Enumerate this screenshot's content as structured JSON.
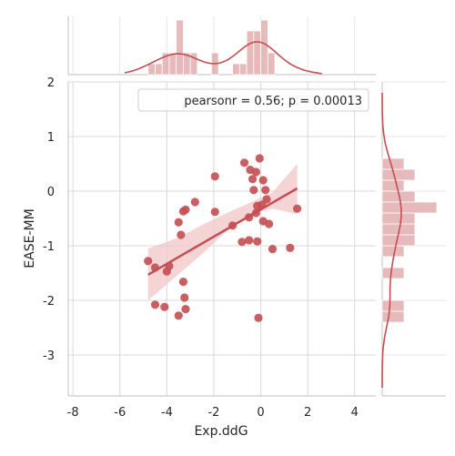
{
  "chart_data": {
    "type": "scatter",
    "title": "",
    "xlabel": "Exp.ddG",
    "ylabel": "EASE-MM",
    "xlim": [
      -8.2,
      4.9
    ],
    "ylim": [
      -3.75,
      2.0
    ],
    "xticks": [
      -8,
      -6,
      -4,
      -2,
      0,
      2,
      4
    ],
    "yticks": [
      -3,
      -2,
      -1,
      0,
      1,
      2
    ],
    "grid": true,
    "legend": {
      "text": "pearsonr = 0.56; p = 0.00013",
      "placement": "top-right"
    },
    "colors": {
      "points": "#c44e52",
      "regression": "#c44e52",
      "band": "#f2c6c8",
      "hist": "#dea2a4",
      "grid": "#d9d9d9"
    },
    "points": [
      {
        "x": -4.8,
        "y": -1.28
      },
      {
        "x": -4.5,
        "y": -1.4
      },
      {
        "x": -4.0,
        "y": -1.47
      },
      {
        "x": -3.9,
        "y": -1.37
      },
      {
        "x": -4.5,
        "y": -2.08
      },
      {
        "x": -4.1,
        "y": -2.12
      },
      {
        "x": -3.5,
        "y": -2.28
      },
      {
        "x": -3.2,
        "y": -2.16
      },
      {
        "x": -3.25,
        "y": -1.95
      },
      {
        "x": -3.3,
        "y": -1.66
      },
      {
        "x": -3.4,
        "y": -0.8
      },
      {
        "x": -3.5,
        "y": -0.57
      },
      {
        "x": -3.3,
        "y": -0.37
      },
      {
        "x": -3.2,
        "y": -0.34
      },
      {
        "x": -2.8,
        "y": -0.2
      },
      {
        "x": -1.95,
        "y": 0.27
      },
      {
        "x": -1.95,
        "y": -0.38
      },
      {
        "x": -1.2,
        "y": -0.63
      },
      {
        "x": -0.7,
        "y": 0.52
      },
      {
        "x": -0.45,
        "y": 0.39
      },
      {
        "x": -0.35,
        "y": 0.22
      },
      {
        "x": -0.2,
        "y": 0.35
      },
      {
        "x": -0.05,
        "y": 0.6
      },
      {
        "x": -0.3,
        "y": 0.02
      },
      {
        "x": -0.15,
        "y": -0.27
      },
      {
        "x": 0.05,
        "y": -0.25
      },
      {
        "x": 0.1,
        "y": 0.2
      },
      {
        "x": 0.2,
        "y": 0.02
      },
      {
        "x": 0.25,
        "y": -0.15
      },
      {
        "x": -0.2,
        "y": -0.4
      },
      {
        "x": -0.5,
        "y": -0.48
      },
      {
        "x": 0.1,
        "y": -0.55
      },
      {
        "x": 0.35,
        "y": -0.6
      },
      {
        "x": -0.8,
        "y": -0.93
      },
      {
        "x": -0.5,
        "y": -0.9
      },
      {
        "x": -0.15,
        "y": -0.92
      },
      {
        "x": 0.5,
        "y": -1.06
      },
      {
        "x": 1.25,
        "y": -1.04
      },
      {
        "x": 1.55,
        "y": -0.32
      },
      {
        "x": -0.1,
        "y": -2.32
      }
    ],
    "regression": {
      "x": [
        -4.8,
        1.55
      ],
      "y": [
        -1.53,
        0.05
      ]
    },
    "band": {
      "x": [
        -4.8,
        -3.5,
        -2.5,
        -1.5,
        -0.5,
        0.5,
        1.55
      ],
      "upper": [
        -1.05,
        -0.85,
        -0.62,
        -0.41,
        -0.22,
        -0.02,
        0.5
      ],
      "lower": [
        -2.0,
        -1.52,
        -1.15,
        -0.75,
        -0.42,
        -0.32,
        -0.42
      ]
    },
    "marginal_x": {
      "bin_edges": [
        -4.8,
        -4.5,
        -4.2,
        -3.9,
        -3.6,
        -3.3,
        -3.0,
        -2.7,
        -2.4,
        -2.1,
        -1.8,
        -1.5,
        -1.2,
        -0.9,
        -0.6,
        -0.3,
        0.0,
        0.3,
        0.6,
        0.9,
        1.2,
        1.5
      ],
      "counts": [
        1,
        1,
        2,
        2,
        5,
        2,
        2,
        0,
        0,
        2,
        0,
        0,
        1,
        1,
        4,
        4,
        5,
        2,
        0,
        0,
        0
      ]
    },
    "marginal_y": {
      "bin_edges": [
        -2.4,
        -2.2,
        -2.0,
        -1.8,
        -1.6,
        -1.4,
        -1.2,
        -1.0,
        -0.8,
        -0.6,
        -0.4,
        -0.2,
        0.0,
        0.2,
        0.4,
        0.6
      ],
      "counts": [
        2,
        2,
        0,
        0,
        2,
        0,
        2,
        3,
        3,
        3,
        5,
        3,
        2,
        3,
        2
      ]
    }
  }
}
